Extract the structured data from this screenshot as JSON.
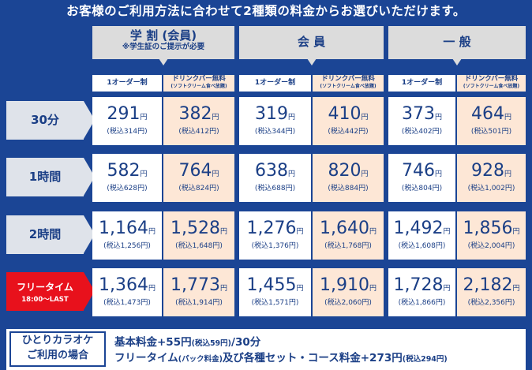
{
  "headline": "お客様のご利用方法に合わせて2種類の料金からお選びいただけます。",
  "categories": [
    {
      "title": "学 割 (会員)",
      "note": "※学生証のご提示が必要"
    },
    {
      "title": "会 員",
      "note": ""
    },
    {
      "title": "一 般",
      "note": ""
    }
  ],
  "plan_labels": {
    "order": "1オーダー制",
    "drink_bar": "ドリンクバー無料",
    "drink_bar_note": "(ソフトクリーム食べ放題)"
  },
  "yen": "円",
  "rows": [
    {
      "label": "30分",
      "prices": [
        {
          "price": "291",
          "tax": "(税込314円)"
        },
        {
          "price": "382",
          "tax": "(税込412円)"
        },
        {
          "price": "319",
          "tax": "(税込344円)"
        },
        {
          "price": "410",
          "tax": "(税込442円)"
        },
        {
          "price": "373",
          "tax": "(税込402円)"
        },
        {
          "price": "464",
          "tax": "(税込501円)"
        }
      ]
    },
    {
      "label": "1時間",
      "prices": [
        {
          "price": "582",
          "tax": "(税込628円)"
        },
        {
          "price": "764",
          "tax": "(税込824円)"
        },
        {
          "price": "638",
          "tax": "(税込688円)"
        },
        {
          "price": "820",
          "tax": "(税込884円)"
        },
        {
          "price": "746",
          "tax": "(税込804円)"
        },
        {
          "price": "928",
          "tax": "(税込1,002円)"
        }
      ]
    },
    {
      "label": "2時間",
      "prices": [
        {
          "price": "1,164",
          "tax": "(税込1,256円)"
        },
        {
          "price": "1,528",
          "tax": "(税込1,648円)"
        },
        {
          "price": "1,276",
          "tax": "(税込1,376円)"
        },
        {
          "price": "1,640",
          "tax": "(税込1,768円)"
        },
        {
          "price": "1,492",
          "tax": "(税込1,608円)"
        },
        {
          "price": "1,856",
          "tax": "(税込2,004円)"
        }
      ]
    },
    {
      "label": "フリータイム",
      "time": "18:00〜LAST",
      "prices": [
        {
          "price": "1,364",
          "tax": "(税込1,473円)"
        },
        {
          "price": "1,773",
          "tax": "(税込1,914円)"
        },
        {
          "price": "1,455",
          "tax": "(税込1,571円)"
        },
        {
          "price": "1,910",
          "tax": "(税込2,060円)"
        },
        {
          "price": "1,728",
          "tax": "(税込1,866円)"
        },
        {
          "price": "2,182",
          "tax": "(税込2,356円)"
        }
      ]
    }
  ],
  "footer": {
    "label_line1": "ひとりカラオケ",
    "label_line2": "ご利用の場合",
    "line1_main": "基本料金+55円",
    "line1_small": "(税込59円)",
    "line1_end": "/30分",
    "line2_a": "フリータイム",
    "line2_a_small": "(パック料金)",
    "line2_b": "及び各種セット・コース料金+273円",
    "line2_b_small": "(税込294円)"
  },
  "colors": {
    "background": "#1b4595",
    "drink_bar_cell": "#fde7d6",
    "free_time_label": "#e8111c"
  }
}
